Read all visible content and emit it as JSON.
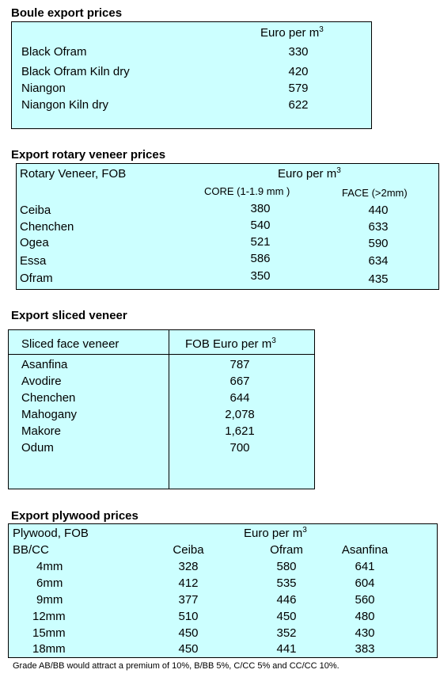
{
  "boule": {
    "title": "Boule export prices",
    "unit_label": "Euro per m",
    "unit_sup": "3",
    "rows": [
      {
        "name": "Black Ofram",
        "value": "330"
      },
      {
        "name": "Black Ofram  Kiln dry",
        "value": "420"
      },
      {
        "name": "Niangon",
        "value": "579"
      },
      {
        "name": "Niangon Kiln dry",
        "value": "622"
      }
    ]
  },
  "rotary": {
    "title": "Export rotary veneer prices",
    "header_left": "Rotary Veneer,  FOB",
    "unit_label": "Euro  per m",
    "unit_sup": "3",
    "col_core": "CORE (1-1.9 mm )",
    "col_face": "FACE (>2mm)",
    "rows": [
      {
        "name": "Ceiba",
        "core": "380",
        "face": "440"
      },
      {
        "name": "Chenchen",
        "core": "540",
        "face": "633"
      },
      {
        "name": "Ogea",
        "core": "521",
        "face": "590"
      },
      {
        "name": "Essa",
        "core": "586",
        "face": "634"
      },
      {
        "name": "Ofram",
        "core": "350",
        "face": "435"
      }
    ]
  },
  "sliced": {
    "title": "Export sliced veneer",
    "header_left": "Sliced face veneer",
    "header_right": "FOB Euro per m",
    "unit_sup": "3",
    "rows": [
      {
        "name": "Asanfina",
        "value": "787"
      },
      {
        "name": "Avodire",
        "value": "667"
      },
      {
        "name": "Chenchen",
        "value": "644"
      },
      {
        "name": "Mahogany",
        "value": "2,078"
      },
      {
        "name": "Makore",
        "value": "1,621"
      },
      {
        "name": "Odum",
        "value": "700"
      }
    ]
  },
  "plywood": {
    "title": "Export plywood prices",
    "header_left": "Plywood, FOB",
    "unit_label": "Euro per m",
    "unit_sup": "3",
    "grade_label": "BB/CC",
    "col_ceiba": "Ceiba",
    "col_ofram": "Ofram",
    "col_asanfina": "Asanfina",
    "rows": [
      {
        "size": "4mm",
        "ceiba": "328",
        "ofram": "580",
        "asanfina": "641"
      },
      {
        "size": "6mm",
        "ceiba": "412",
        "ofram": "535",
        "asanfina": "604"
      },
      {
        "size": "9mm",
        "ceiba": "377",
        "ofram": "446",
        "asanfina": "560"
      },
      {
        "size": "12mm",
        "ceiba": "510",
        "ofram": "450",
        "asanfina": "480"
      },
      {
        "size": "15mm",
        "ceiba": "450",
        "ofram": "352",
        "asanfina": "430"
      },
      {
        "size": "18mm",
        "ceiba": "450",
        "ofram": "441",
        "asanfina": "383"
      }
    ],
    "footnote": "Grade AB/BB would attract a premium of 10%, B/BB 5%, C/CC 5% and CC/CC 10%."
  }
}
